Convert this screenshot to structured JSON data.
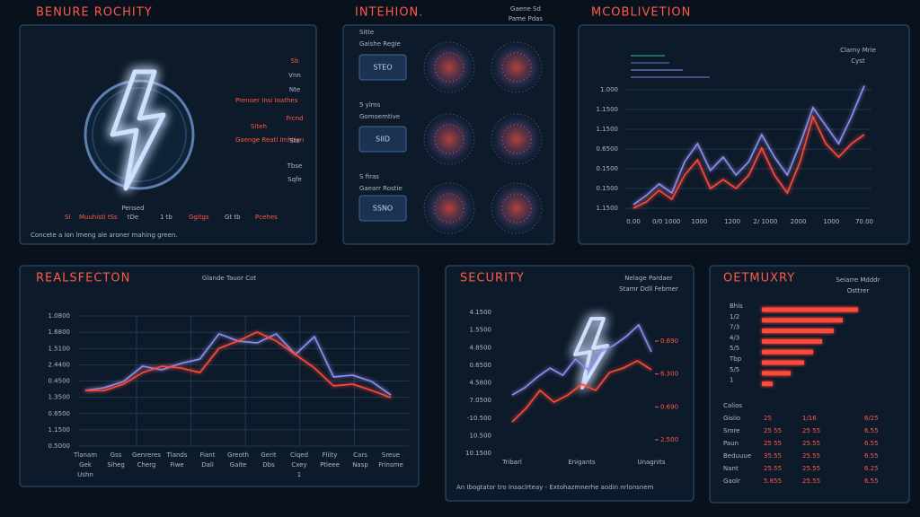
{
  "panels": {
    "p1": {
      "title": "BENURE ROCHITY",
      "side": [
        "Sb",
        "Vnn",
        "Prenoer Insi Ioathes",
        "Nte",
        "Frcnd",
        "Siteh",
        "Gaenge Reatl Imhtion",
        "Ste",
        "Tbse",
        "Sqfe"
      ],
      "foot": [
        "Sl",
        "Muuhisti tSs",
        "Pensed",
        "tDe",
        "1 tb",
        "Ggitgs",
        "Gt tb",
        "Pcehes"
      ],
      "caption": "Concete a ion lmeng ale aroner mahing green."
    },
    "p2": {
      "title": "INTEHION.",
      "subtitle": [
        "Gaene Sd",
        "Pame Pdas"
      ],
      "rows": [
        {
          "label": [
            "Sitte",
            "Gaishe Regie"
          ],
          "box": "STEO"
        },
        {
          "label": [
            "5 ylms",
            "Gomoemtive"
          ],
          "box": "SIID"
        },
        {
          "label": [
            "S firas",
            "Gaearr Rostie"
          ],
          "box": "SSNO"
        }
      ]
    },
    "p5": {
      "footer": "An Ibogtator tro Insaclrteay - Extohazmnerhe aodin nrlonsnem"
    },
    "p6": {
      "header": "Calios",
      "table": [
        [
          "Gisiio",
          "25",
          "1/16",
          "6/25"
        ],
        [
          "Srore",
          "25 55",
          "25 55",
          "6.55"
        ],
        [
          "Paun",
          "25 55",
          "25.55",
          "6.55"
        ],
        [
          "Beduuue",
          "35.55",
          "25.55",
          "6.55"
        ],
        [
          "Nant",
          "25.55",
          "25.55",
          "6.25"
        ],
        [
          "Gaolr",
          "5.855",
          "25.55",
          "6.55"
        ]
      ]
    }
  },
  "chart_data": [
    {
      "type": "line",
      "title": "MCOBLIVETION",
      "subtitle": [
        "Clarny Mrie",
        "Cyst"
      ],
      "ylim": [
        0,
        6.5
      ],
      "yticks": [
        {
          "value": 6,
          "label": "1.000"
        },
        {
          "value": 5,
          "label": "1.1500"
        },
        {
          "value": 4,
          "label": "1.1500"
        },
        {
          "value": 3,
          "label": "0.6500"
        },
        {
          "value": 2,
          "label": "0.1500"
        },
        {
          "value": 1,
          "label": "0.1500"
        },
        {
          "value": 0,
          "label": "1.1500"
        }
      ],
      "x_labels": [
        "0.00",
        "0/0 1000",
        "1000",
        "1200",
        "2/ 1000",
        "2000",
        "1000",
        "70.00"
      ],
      "grid": true,
      "series": [
        {
          "color": "#8d8ff2",
          "values": [
            0.18,
            0.64,
            1.23,
            0.77,
            2.36,
            3.27,
            1.91,
            2.59,
            1.68,
            2.36,
            3.73,
            2.59,
            1.68,
            3.27,
            5.09,
            4.18,
            3.27,
            4.64,
            6.2
          ]
        },
        {
          "color": "#ff4a3a",
          "values": [
            0,
            0.32,
            0.91,
            0.45,
            1.68,
            2.45,
            1,
            1.45,
            1,
            1.68,
            3.05,
            1.68,
            0.77,
            2.36,
            4.64,
            3.27,
            2.59,
            3.27,
            3.73
          ]
        }
      ]
    },
    {
      "type": "line",
      "title": "REALSFECTON",
      "subtitle": "Glande Tauor Cot",
      "ylim": [
        0,
        8
      ],
      "yticks": [
        {
          "value": 8,
          "label": "1.0800"
        },
        {
          "value": 7,
          "label": "1.6800"
        },
        {
          "value": 6,
          "label": "1.5100"
        },
        {
          "value": 5,
          "label": "2.4400"
        },
        {
          "value": 4,
          "label": "0.4500"
        },
        {
          "value": 3,
          "label": "1.3500"
        },
        {
          "value": 2,
          "label": "0.6500"
        },
        {
          "value": 1,
          "label": "1.1500"
        },
        {
          "value": 0,
          "label": "0.5000"
        }
      ],
      "x_labels": [
        [
          "Tlanam",
          "Gek",
          "Ushn"
        ],
        [
          "Gss",
          "Siheg"
        ],
        [
          "Genreres",
          "Cherg"
        ],
        [
          "Tlands",
          "Fiwe"
        ],
        [
          "Fiant",
          "Dall"
        ],
        [
          "Greoth",
          "Gaite"
        ],
        [
          "Gerit",
          "Dbs"
        ],
        [
          "Ciqed",
          "Cxey",
          "1"
        ],
        [
          "Fliity",
          "Ptleee"
        ],
        [
          "Cars",
          "Nasp"
        ],
        [
          "Sreue",
          "Frinsme"
        ]
      ],
      "grid": true,
      "series": [
        {
          "color": "#8d8ff2",
          "values": [
            3.42,
            3.59,
            3.97,
            4.91,
            4.69,
            5.08,
            5.35,
            6.9,
            6.46,
            6.34,
            6.9,
            5.63,
            6.73,
            4.25,
            4.36,
            3.97,
            3.14
          ]
        },
        {
          "color": "#ff4a3a",
          "values": [
            3.42,
            3.42,
            3.81,
            4.52,
            4.91,
            4.8,
            4.52,
            6.01,
            6.46,
            7.01,
            6.46,
            5.63,
            4.8,
            3.7,
            3.81,
            3.42,
            2.98
          ]
        }
      ]
    },
    {
      "type": "line",
      "title": "SECURITY",
      "subtitle": [
        "Nelage Pardaer",
        "Stamr Ddll Febmer"
      ],
      "ylim": [
        0,
        8
      ],
      "yticks": [
        {
          "value": 8,
          "label": "4.1500"
        },
        {
          "value": 7,
          "label": "1.5500"
        },
        {
          "value": 6,
          "label": "4.8500"
        },
        {
          "value": 5,
          "label": "0.6500"
        },
        {
          "value": 4,
          "label": "4.5800"
        },
        {
          "value": 3,
          "label": "7.0500"
        },
        {
          "value": 2,
          "label": "-10.500"
        },
        {
          "value": 1,
          "label": "10.500"
        },
        {
          "value": 0,
          "label": "10.1500"
        }
      ],
      "y2lim": [
        0,
        3
      ],
      "y2ticks": [
        {
          "value": 3,
          "label": "0.690"
        },
        {
          "value": 2,
          "label": "6.300"
        },
        {
          "value": 1,
          "label": "0.690"
        },
        {
          "value": 0,
          "label": "2.500"
        }
      ],
      "x_labels": [
        "Tribarl",
        "Enigants",
        "Unagnits"
      ],
      "series": [
        {
          "color": "#8d8ff2",
          "values": [
            3.31,
            3.72,
            4.33,
            4.84,
            4.43,
            5.35,
            4.74,
            5.76,
            6.11,
            6.62,
            7.29,
            5.76
          ]
        },
        {
          "color": "#ff4a3a",
          "values": [
            1.78,
            2.55,
            3.57,
            2.9,
            3.31,
            3.92,
            3.57,
            4.59,
            4.84,
            5.25,
            4.74
          ]
        }
      ]
    },
    {
      "type": "barh",
      "title": "OETMUXRY",
      "subtitle": [
        "Seiarre Mdddr",
        "Osttrer"
      ],
      "categories": [
        "Bhis",
        "1/2",
        "7/3",
        "4/3",
        "5/5",
        "Tbp",
        "5/5",
        "1"
      ],
      "values": [
        107,
        90,
        80,
        67,
        57,
        47,
        32,
        12
      ],
      "color": "#ff4a3a",
      "xlim": [
        0,
        110
      ]
    }
  ]
}
